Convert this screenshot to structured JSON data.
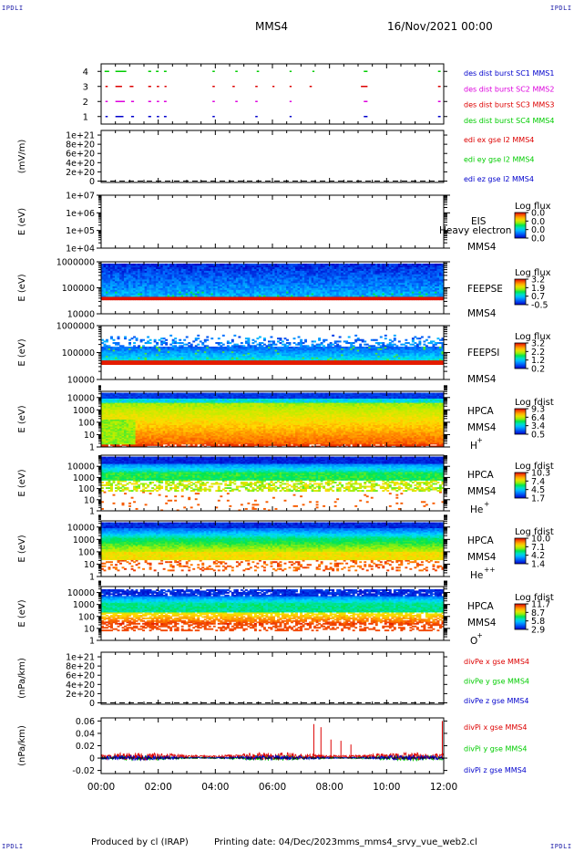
{
  "corner_labels": {
    "tl": "IPDLI",
    "tr": "IPDLI",
    "bl": "IPDLI",
    "br": "IPDLI"
  },
  "header": {
    "spacecraft": "MMS4",
    "datetime": "16/Nov/2021 00:00"
  },
  "footer": {
    "producer": "Produced by cl (IRAP)",
    "printing": "Printing date: 04/Dec/2023",
    "script": "mms_mms4_srvy_vue_web2.cl"
  },
  "colors": {
    "red": "#dd0000",
    "green": "#00cc00",
    "blue": "#0000cc",
    "magenta": "#dd00dd"
  },
  "chart_data": [
    {
      "type": "scatter",
      "id": "burst",
      "ylabel": "",
      "yticks": [
        "1",
        "2",
        "3",
        "4"
      ],
      "ylim": [
        0.5,
        4.5
      ],
      "legend": [
        {
          "text": "des dist burst SC1 MMS1",
          "color": "#0000cc"
        },
        {
          "text": "des dist burst SC2 MMS2",
          "color": "#dd00dd"
        },
        {
          "text": "des dist burst SC3 MMS3",
          "color": "#dd0000"
        },
        {
          "text": "des dist burst SC4 MMS4",
          "color": "#00cc00"
        }
      ],
      "series": [
        {
          "level": 4,
          "color": "#00cc00",
          "intervals_h": [
            [
              0.12,
              0.25
            ],
            [
              0.5,
              0.85
            ],
            [
              1.65,
              1.72
            ],
            [
              1.92,
              1.98
            ],
            [
              2.2,
              2.26
            ],
            [
              3.9,
              3.95
            ],
            [
              4.7,
              4.75
            ],
            [
              5.45,
              5.5
            ],
            [
              6.6,
              6.64
            ],
            [
              7.4,
              7.44
            ],
            [
              9.2,
              9.3
            ],
            [
              11.8,
              11.86
            ]
          ]
        },
        {
          "level": 3,
          "color": "#dd0000",
          "intervals_h": [
            [
              0.15,
              0.2
            ],
            [
              0.5,
              0.7
            ],
            [
              1.0,
              1.1
            ],
            [
              1.65,
              1.72
            ],
            [
              1.95,
              2.0
            ],
            [
              2.22,
              2.26
            ],
            [
              3.9,
              3.95
            ],
            [
              4.6,
              4.65
            ],
            [
              5.4,
              5.45
            ],
            [
              6.0,
              6.04
            ],
            [
              6.6,
              6.64
            ],
            [
              7.3,
              7.35
            ],
            [
              9.1,
              9.3
            ],
            [
              11.8,
              11.86
            ]
          ]
        },
        {
          "level": 2,
          "color": "#dd00dd",
          "intervals_h": [
            [
              0.15,
              0.2
            ],
            [
              0.5,
              0.8
            ],
            [
              1.05,
              1.12
            ],
            [
              1.65,
              1.72
            ],
            [
              1.95,
              2.0
            ],
            [
              2.2,
              2.26
            ],
            [
              3.9,
              3.95
            ],
            [
              4.7,
              4.75
            ],
            [
              5.4,
              5.45
            ],
            [
              6.6,
              6.64
            ],
            [
              9.2,
              9.3
            ],
            [
              11.8,
              11.86
            ]
          ]
        },
        {
          "level": 1,
          "color": "#0000cc",
          "intervals_h": [
            [
              0.15,
              0.2
            ],
            [
              0.5,
              0.75
            ],
            [
              1.05,
              1.12
            ],
            [
              1.65,
              1.72
            ],
            [
              1.95,
              2.0
            ],
            [
              2.2,
              2.26
            ],
            [
              3.9,
              3.95
            ],
            [
              5.4,
              5.45
            ],
            [
              6.6,
              6.64
            ],
            [
              9.2,
              9.3
            ],
            [
              11.8,
              11.86
            ]
          ]
        }
      ]
    },
    {
      "type": "line",
      "id": "edi",
      "ylabel": "(mV/m)",
      "yticks": [
        "0",
        "2e+20",
        "4e+20",
        "6e+20",
        "8e+20",
        "1e+21"
      ],
      "ylim": [
        -3e+19,
        1.1e+21
      ],
      "zero_line": true,
      "legend": [
        {
          "text": "edi ex gse l2 MMS4",
          "color": "#dd0000"
        },
        {
          "text": "edi ey gse l2 MMS4",
          "color": "#00cc00"
        },
        {
          "text": "edi ez gse l2 MMS4",
          "color": "#0000cc"
        }
      ]
    },
    {
      "type": "heatmap",
      "id": "eis",
      "ylabel": "E (eV)",
      "yticks": [
        "1e+04",
        "1e+05",
        "1e+06",
        "1e+07"
      ],
      "ylim_log": [
        4,
        7
      ],
      "labels": [
        "EIS",
        "MMS4"
      ],
      "overlay": "Heavy electron to",
      "cbar_title": "Log flux",
      "cbar_ticks": [
        "0.0",
        "0.0",
        "0.0",
        "0.0"
      ],
      "empty": true
    },
    {
      "type": "heatmap",
      "id": "feepse",
      "ylabel": "E (eV)",
      "yticks": [
        "10000",
        "100000",
        "1000000"
      ],
      "ylim_log": [
        4,
        6
      ],
      "labels": [
        "FEEPSE",
        "MMS4"
      ],
      "cbar_title": "Log flux",
      "cbar_ticks": [
        "3.2",
        "1.9",
        "0.7",
        "-0.5"
      ],
      "data_range_log": [
        4.4,
        6.0
      ]
    },
    {
      "type": "heatmap",
      "id": "feepsi",
      "ylabel": "E (eV)",
      "yticks": [
        "10000",
        "100000",
        "1000000"
      ],
      "ylim_log": [
        4,
        6
      ],
      "labels": [
        "FEEPSI",
        "MMS4"
      ],
      "cbar_title": "Log flux",
      "cbar_ticks": [
        "3.2",
        "2.2",
        "1.2",
        "0.2"
      ],
      "data_range_log": [
        4.6,
        5.5
      ]
    },
    {
      "type": "heatmap",
      "id": "hpca_h",
      "ylabel": "E (eV)",
      "yticks": [
        "1",
        "10",
        "100",
        "1000",
        "10000"
      ],
      "ylim_log": [
        0,
        4.5
      ],
      "labels": [
        "HPCA",
        "MMS4"
      ],
      "species": "H",
      "charge": "+",
      "cbar_title": "Log fdist",
      "cbar_ticks": [
        "9.3",
        "6.4",
        "3.4",
        "0.5"
      ]
    },
    {
      "type": "heatmap",
      "id": "hpca_he",
      "ylabel": "E (eV)",
      "yticks": [
        "1",
        "10",
        "100",
        "1000",
        "10000"
      ],
      "ylim_log": [
        0,
        5
      ],
      "labels": [
        "HPCA",
        "MMS4"
      ],
      "species": "He",
      "charge": "+",
      "cbar_title": "Log fdist",
      "cbar_ticks": [
        "10.3",
        "7.4",
        "4.5",
        "1.7"
      ]
    },
    {
      "type": "heatmap",
      "id": "hpca_he2",
      "ylabel": "E (eV)",
      "yticks": [
        "1",
        "10",
        "100",
        "1000",
        "10000"
      ],
      "ylim_log": [
        0,
        4.5
      ],
      "labels": [
        "HPCA",
        "MMS4"
      ],
      "species": "He",
      "charge": "++",
      "cbar_title": "Log fdist",
      "cbar_ticks": [
        "10.0",
        "7.1",
        "4.2",
        "1.4"
      ]
    },
    {
      "type": "heatmap",
      "id": "hpca_o",
      "ylabel": "E (eV)",
      "yticks": [
        "1",
        "10",
        "100",
        "1000",
        "10000"
      ],
      "ylim_log": [
        0,
        4.5
      ],
      "labels": [
        "HPCA",
        "MMS4"
      ],
      "species": "O",
      "charge": "+",
      "cbar_title": "Log fdist",
      "cbar_ticks": [
        "11.7",
        "8.7",
        "5.8",
        "2.9"
      ]
    },
    {
      "type": "line",
      "id": "divpe",
      "ylabel": "(nPa/km)",
      "yticks": [
        "0",
        "2e+20",
        "4e+20",
        "6e+20",
        "8e+20",
        "1e+21"
      ],
      "ylim": [
        -3e+19,
        1.1e+21
      ],
      "zero_line": true,
      "legend": [
        {
          "text": "divPe x gse MMS4",
          "color": "#dd0000"
        },
        {
          "text": "divPe y gse MMS4",
          "color": "#00cc00"
        },
        {
          "text": "divPe z gse MMS4",
          "color": "#0000cc"
        }
      ]
    },
    {
      "type": "line",
      "id": "divpi",
      "ylabel": "(nPa/km)",
      "yticks": [
        "-0.02",
        "0",
        "0.02",
        "0.04",
        "0.06"
      ],
      "ylim": [
        -0.025,
        0.065
      ],
      "legend": [
        {
          "text": "divPi x gse MMS4",
          "color": "#dd0000"
        },
        {
          "text": "divPi y gse MMS4",
          "color": "#00cc00"
        },
        {
          "text": "divPi z gse MMS4",
          "color": "#0000cc"
        }
      ],
      "spikes": [
        {
          "t": 7.45,
          "v": 0.055
        },
        {
          "t": 7.7,
          "v": 0.05
        },
        {
          "t": 8.05,
          "v": 0.03
        },
        {
          "t": 8.4,
          "v": 0.028
        },
        {
          "t": 8.75,
          "v": 0.022
        },
        {
          "t": 11.95,
          "v": 0.06
        }
      ]
    }
  ],
  "x_axis": {
    "ticks": [
      "00:00",
      "02:00",
      "04:00",
      "06:00",
      "08:00",
      "10:00",
      "12:00"
    ],
    "xlim_h": [
      0,
      12
    ]
  }
}
